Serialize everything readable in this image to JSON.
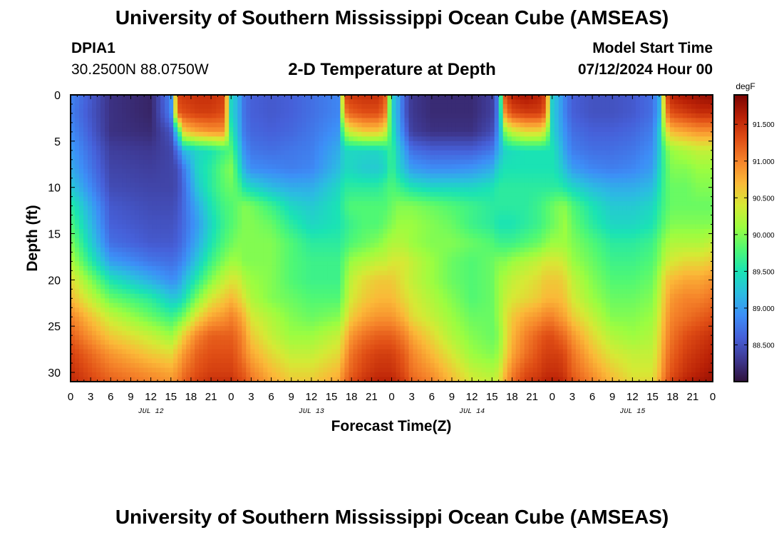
{
  "header": {
    "title": "University of Southern Mississippi Ocean Cube (AMSEAS)",
    "station_id": "DPIA1",
    "station_coords": "30.2500N  88.0750W",
    "plot_title": "2-D Temperature at Depth",
    "model_start_label": "Model Start Time",
    "model_start_value": "07/12/2024 Hour 00"
  },
  "footer": {
    "title": "University of Southern Mississippi Ocean Cube (AMSEAS)"
  },
  "chart_data": {
    "type": "heatmap",
    "title": "2-D Temperature at Depth",
    "xlabel": "Forecast Time(Z)",
    "ylabel": "Depth (ft)",
    "x_ticks": [
      "0",
      "3",
      "6",
      "9",
      "12",
      "15",
      "18",
      "21",
      "0",
      "3",
      "6",
      "9",
      "12",
      "15",
      "18",
      "21",
      "0",
      "3",
      "6",
      "9",
      "12",
      "15",
      "18",
      "21",
      "0",
      "3",
      "6",
      "9",
      "12",
      "15",
      "18",
      "21",
      "0"
    ],
    "date_labels": [
      {
        "label": "JUL 12",
        "hour": 12
      },
      {
        "label": "JUL 13",
        "hour": 36
      },
      {
        "label": "JUL 14",
        "hour": 60
      },
      {
        "label": "JUL 15",
        "hour": 84
      }
    ],
    "xlim": [
      0,
      96
    ],
    "ylim": [
      0,
      31
    ],
    "y_inverted": true,
    "y_ticks": [
      0,
      5,
      10,
      15,
      20,
      25,
      30
    ],
    "colorbar": {
      "unit": "degF",
      "range": [
        88.0,
        91.9
      ],
      "ticks": [
        "88.500",
        "89.000",
        "89.500",
        "90.000",
        "90.500",
        "91.000",
        "91.500"
      ],
      "tick_values": [
        88.5,
        89.0,
        89.5,
        90.0,
        90.5,
        91.0,
        91.5
      ],
      "colors": [
        "#30123b",
        "#3e3891",
        "#4660d9",
        "#3d8ef7",
        "#2bbce1",
        "#1ae3b4",
        "#4ff874",
        "#9cfd40",
        "#d6e935",
        "#fbb938",
        "#f5832a",
        "#e04e15",
        "#b92006",
        "#7a0403"
      ]
    },
    "depth_levels_ft": [
      0,
      2,
      4,
      6,
      8,
      10,
      12,
      14,
      16,
      18,
      20,
      22,
      24,
      26,
      28,
      30,
      31
    ],
    "time_hours": [
      0,
      6,
      12,
      15,
      16,
      17,
      19,
      21,
      23,
      24,
      25,
      26,
      27,
      30,
      33,
      36,
      40,
      41,
      42,
      44,
      46,
      47,
      48,
      49,
      50,
      51,
      54,
      57,
      60,
      63,
      64,
      65,
      66,
      68,
      70,
      71,
      72,
      73,
      74,
      75,
      78,
      81,
      84,
      87,
      88,
      89,
      90,
      92,
      94,
      96
    ],
    "temperature_degF": [
      [
        88.85,
        88.25,
        88.15,
        88.85,
        91.4,
        91.45,
        91.5,
        91.5,
        91.4,
        89.4,
        89.15,
        88.7,
        88.6,
        88.55,
        88.6,
        88.7,
        88.85,
        91.4,
        91.45,
        91.5,
        91.5,
        91.3,
        89.4,
        89.05,
        88.55,
        88.3,
        88.2,
        88.2,
        88.2,
        88.35,
        88.85,
        91.4,
        91.6,
        91.7,
        91.6,
        91.4,
        89.35,
        89.1,
        88.8,
        88.6,
        88.5,
        88.5,
        88.55,
        88.7,
        89.1,
        91.3,
        91.6,
        91.7,
        91.75,
        91.8
      ],
      [
        88.8,
        88.25,
        88.15,
        88.8,
        91.2,
        91.3,
        91.4,
        91.4,
        91.3,
        89.4,
        89.15,
        88.7,
        88.6,
        88.55,
        88.6,
        88.7,
        88.85,
        91.0,
        91.2,
        91.3,
        91.3,
        91.1,
        89.4,
        89.05,
        88.55,
        88.3,
        88.2,
        88.2,
        88.2,
        88.35,
        88.85,
        91.0,
        91.3,
        91.4,
        91.4,
        91.2,
        89.35,
        89.1,
        88.8,
        88.6,
        88.5,
        88.5,
        88.55,
        88.7,
        89.1,
        91.0,
        91.3,
        91.4,
        91.5,
        91.5
      ],
      [
        88.9,
        88.25,
        88.2,
        88.5,
        89.4,
        90.6,
        90.8,
        90.9,
        90.9,
        89.6,
        89.2,
        88.75,
        88.65,
        88.6,
        88.65,
        88.75,
        88.95,
        90.1,
        90.4,
        90.6,
        90.6,
        90.4,
        89.6,
        89.1,
        88.7,
        88.35,
        88.25,
        88.25,
        88.25,
        88.45,
        88.95,
        90.0,
        90.3,
        90.5,
        90.5,
        90.3,
        89.4,
        89.15,
        88.9,
        88.7,
        88.6,
        88.6,
        88.65,
        88.8,
        89.3,
        90.4,
        90.7,
        90.8,
        90.9,
        90.9
      ],
      [
        89.0,
        88.35,
        88.3,
        88.4,
        88.7,
        89.2,
        89.4,
        89.5,
        89.7,
        89.8,
        89.4,
        88.9,
        88.75,
        88.7,
        88.75,
        88.8,
        89.1,
        89.4,
        89.4,
        89.4,
        89.4,
        89.5,
        89.7,
        89.3,
        89.0,
        88.7,
        88.6,
        88.6,
        88.6,
        88.75,
        89.1,
        89.4,
        89.45,
        89.5,
        89.5,
        89.5,
        89.5,
        89.3,
        89.0,
        88.8,
        88.7,
        88.7,
        88.75,
        88.9,
        89.3,
        89.9,
        90.1,
        90.2,
        90.3,
        90.3
      ],
      [
        89.1,
        88.4,
        88.35,
        88.4,
        88.45,
        88.8,
        89.4,
        89.6,
        89.9,
        90.0,
        89.6,
        89.1,
        88.9,
        88.85,
        88.8,
        88.85,
        89.2,
        89.4,
        89.4,
        89.3,
        89.3,
        89.4,
        89.7,
        89.4,
        89.2,
        89.0,
        88.9,
        88.9,
        88.95,
        89.1,
        89.4,
        89.5,
        89.5,
        89.5,
        89.5,
        89.5,
        89.5,
        89.4,
        89.2,
        89.0,
        88.85,
        88.8,
        88.85,
        89.0,
        89.4,
        89.8,
        90.0,
        90.0,
        90.1,
        90.1
      ],
      [
        89.3,
        88.45,
        88.4,
        88.4,
        88.45,
        88.7,
        89.3,
        89.6,
        89.85,
        89.9,
        89.8,
        89.5,
        89.4,
        89.2,
        89.1,
        89.1,
        89.4,
        89.6,
        89.6,
        89.6,
        89.6,
        89.7,
        89.8,
        89.7,
        89.6,
        89.5,
        89.4,
        89.4,
        89.4,
        89.5,
        89.6,
        89.6,
        89.6,
        89.6,
        89.6,
        89.6,
        89.6,
        89.6,
        89.5,
        89.4,
        89.2,
        89.1,
        89.1,
        89.2,
        89.5,
        89.8,
        89.9,
        89.9,
        90.0,
        90.0
      ],
      [
        89.6,
        88.55,
        88.45,
        88.45,
        88.5,
        88.7,
        89.1,
        89.5,
        89.75,
        89.8,
        89.9,
        90.0,
        89.95,
        89.7,
        89.4,
        89.3,
        89.5,
        89.7,
        89.8,
        89.8,
        89.8,
        89.8,
        89.9,
        90.0,
        90.0,
        90.0,
        89.9,
        89.8,
        89.7,
        89.6,
        89.6,
        89.6,
        89.6,
        89.6,
        89.7,
        89.8,
        89.9,
        90.0,
        90.0,
        89.8,
        89.5,
        89.3,
        89.3,
        89.4,
        89.6,
        89.8,
        89.9,
        89.9,
        89.9,
        89.9
      ],
      [
        89.8,
        88.6,
        88.5,
        88.5,
        88.55,
        88.7,
        89.0,
        89.4,
        89.7,
        89.8,
        89.9,
        90.0,
        90.0,
        89.9,
        89.6,
        89.4,
        89.5,
        89.6,
        89.7,
        89.8,
        89.8,
        89.9,
        90.0,
        90.1,
        90.1,
        90.1,
        90.0,
        89.9,
        89.7,
        89.6,
        89.5,
        89.5,
        89.5,
        89.6,
        89.7,
        89.8,
        89.9,
        90.0,
        90.1,
        89.9,
        89.6,
        89.4,
        89.4,
        89.5,
        89.7,
        89.9,
        90.0,
        90.0,
        90.0,
        90.0
      ],
      [
        90.0,
        88.7,
        88.55,
        88.55,
        88.6,
        88.75,
        89.1,
        89.5,
        89.8,
        89.9,
        90.0,
        90.0,
        90.0,
        90.0,
        89.8,
        89.6,
        89.6,
        89.7,
        89.8,
        89.9,
        90.0,
        90.1,
        90.2,
        90.2,
        90.2,
        90.1,
        90.0,
        90.0,
        89.9,
        89.8,
        89.7,
        89.7,
        89.7,
        89.8,
        89.9,
        90.0,
        90.1,
        90.1,
        90.1,
        90.0,
        89.8,
        89.6,
        89.6,
        89.7,
        89.9,
        90.1,
        90.2,
        90.2,
        90.2,
        90.3
      ],
      [
        90.2,
        89.0,
        88.75,
        88.7,
        88.75,
        88.9,
        89.3,
        89.7,
        90.0,
        90.1,
        90.1,
        90.0,
        90.0,
        90.0,
        89.8,
        89.7,
        89.7,
        89.9,
        90.1,
        90.2,
        90.3,
        90.3,
        90.4,
        90.4,
        90.4,
        90.3,
        90.1,
        89.9,
        89.8,
        89.9,
        90.0,
        90.0,
        90.1,
        90.2,
        90.3,
        90.4,
        90.4,
        90.4,
        90.3,
        90.1,
        89.9,
        89.7,
        89.7,
        89.8,
        90.0,
        90.3,
        90.4,
        90.5,
        90.5,
        90.6
      ],
      [
        90.5,
        89.5,
        89.1,
        88.9,
        88.95,
        89.2,
        89.6,
        90.0,
        90.3,
        90.4,
        90.4,
        90.2,
        90.1,
        90.0,
        89.8,
        89.7,
        89.7,
        90.0,
        90.3,
        90.5,
        90.6,
        90.6,
        90.6,
        90.5,
        90.4,
        90.3,
        90.1,
        89.9,
        89.8,
        89.9,
        90.1,
        90.2,
        90.3,
        90.4,
        90.5,
        90.6,
        90.6,
        90.6,
        90.5,
        90.3,
        90.0,
        89.8,
        89.8,
        89.9,
        90.2,
        90.6,
        90.7,
        90.8,
        90.8,
        90.9
      ],
      [
        90.7,
        89.9,
        89.6,
        89.3,
        89.3,
        89.5,
        90.0,
        90.4,
        90.6,
        90.7,
        90.6,
        90.4,
        90.2,
        90.0,
        89.9,
        89.8,
        89.8,
        90.1,
        90.4,
        90.6,
        90.7,
        90.7,
        90.7,
        90.6,
        90.5,
        90.4,
        90.2,
        90.0,
        89.8,
        89.9,
        90.1,
        90.3,
        90.4,
        90.5,
        90.6,
        90.7,
        90.7,
        90.7,
        90.6,
        90.4,
        90.1,
        89.9,
        89.9,
        90.0,
        90.3,
        90.7,
        90.9,
        91.0,
        91.0,
        91.1
      ],
      [
        91.0,
        90.3,
        89.9,
        89.7,
        89.8,
        90.0,
        90.5,
        90.8,
        90.9,
        91.0,
        90.9,
        90.7,
        90.4,
        90.2,
        90.0,
        89.9,
        90.0,
        90.3,
        90.6,
        90.8,
        90.9,
        90.9,
        90.9,
        90.8,
        90.7,
        90.5,
        90.3,
        90.1,
        89.9,
        89.9,
        90.1,
        90.4,
        90.6,
        90.8,
        90.9,
        91.0,
        91.0,
        90.9,
        90.8,
        90.6,
        90.3,
        90.0,
        90.0,
        90.1,
        90.4,
        90.8,
        91.0,
        91.1,
        91.2,
        91.3
      ],
      [
        91.2,
        90.6,
        90.3,
        90.1,
        90.3,
        90.6,
        91.0,
        91.2,
        91.2,
        91.2,
        91.1,
        90.9,
        90.6,
        90.3,
        90.1,
        90.1,
        90.3,
        90.6,
        90.9,
        91.1,
        91.2,
        91.2,
        91.2,
        91.1,
        91.0,
        90.8,
        90.5,
        90.2,
        90.0,
        89.9,
        90.0,
        90.4,
        90.7,
        91.0,
        91.2,
        91.3,
        91.3,
        91.2,
        91.1,
        90.9,
        90.5,
        90.2,
        90.1,
        90.2,
        90.5,
        90.9,
        91.1,
        91.3,
        91.4,
        91.5
      ],
      [
        91.4,
        90.9,
        90.6,
        90.5,
        90.7,
        90.9,
        91.2,
        91.3,
        91.3,
        91.3,
        91.2,
        91.0,
        90.8,
        90.5,
        90.3,
        90.3,
        90.5,
        90.8,
        91.1,
        91.3,
        91.4,
        91.4,
        91.4,
        91.3,
        91.2,
        91.0,
        90.7,
        90.4,
        90.1,
        90.0,
        90.1,
        90.5,
        90.8,
        91.1,
        91.3,
        91.4,
        91.4,
        91.4,
        91.3,
        91.1,
        90.7,
        90.4,
        90.3,
        90.3,
        90.6,
        91.0,
        91.2,
        91.4,
        91.5,
        91.6
      ],
      [
        91.5,
        91.1,
        90.9,
        90.8,
        90.9,
        91.1,
        91.3,
        91.4,
        91.4,
        91.4,
        91.3,
        91.2,
        91.0,
        90.7,
        90.5,
        90.5,
        90.7,
        91.0,
        91.2,
        91.4,
        91.5,
        91.5,
        91.5,
        91.4,
        91.3,
        91.1,
        90.9,
        90.6,
        90.3,
        90.2,
        90.3,
        90.7,
        91.0,
        91.3,
        91.4,
        91.5,
        91.5,
        91.5,
        91.4,
        91.2,
        90.9,
        90.6,
        90.4,
        90.4,
        90.7,
        91.1,
        91.3,
        91.5,
        91.6,
        91.7
      ],
      [
        91.55,
        91.2,
        91.0,
        90.9,
        91.0,
        91.2,
        91.4,
        91.5,
        91.5,
        91.5,
        91.4,
        91.3,
        91.1,
        90.8,
        90.6,
        90.6,
        90.8,
        91.1,
        91.3,
        91.5,
        91.6,
        91.6,
        91.6,
        91.5,
        91.4,
        91.2,
        91.0,
        90.7,
        90.4,
        90.3,
        90.4,
        90.8,
        91.1,
        91.4,
        91.5,
        91.6,
        91.6,
        91.6,
        91.5,
        91.3,
        91.0,
        90.7,
        90.5,
        90.5,
        90.8,
        91.2,
        91.4,
        91.6,
        91.7,
        91.75
      ]
    ]
  }
}
